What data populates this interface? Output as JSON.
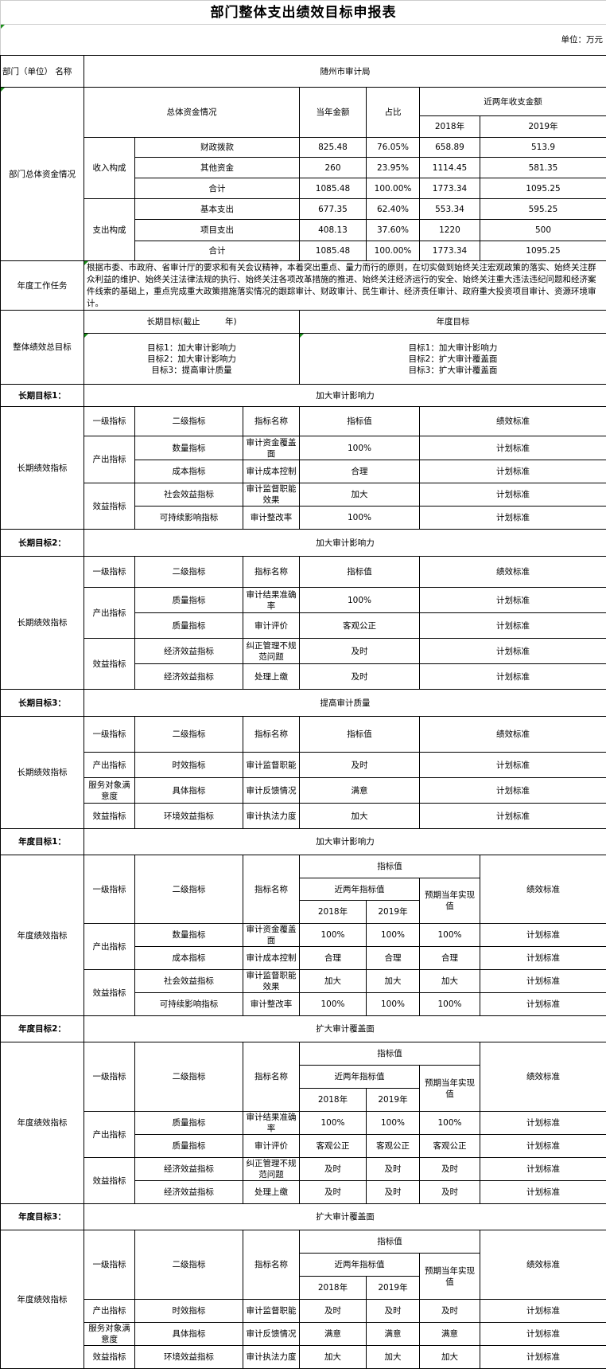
{
  "title": "部门整体支出绩效目标申报表",
  "unit": "单位：万元",
  "department": {
    "label": "部门（单位） 名称",
    "value": "随州市审计局"
  },
  "overall_funds": {
    "label": "部门总体资金情况",
    "headers": {
      "category": "总体资金情况",
      "current": "当年金额",
      "ratio": "占比",
      "recent": "近两年收支金额",
      "y2018": "2018年",
      "y2019": "2019年"
    },
    "groups": [
      {
        "name": "收入构成",
        "rows": [
          {
            "item": "财政拨款",
            "current": "825.48",
            "ratio": "76.05%",
            "y2018": "658.89",
            "y2019": "513.9"
          },
          {
            "item": "其他资金",
            "current": "260",
            "ratio": "23.95%",
            "y2018": "1114.45",
            "y2019": "581.35"
          },
          {
            "item": "合计",
            "current": "1085.48",
            "ratio": "100.00%",
            "y2018": "1773.34",
            "y2019": "1095.25"
          }
        ]
      },
      {
        "name": "支出构成",
        "rows": [
          {
            "item": "基本支出",
            "current": "677.35",
            "ratio": "62.40%",
            "y2018": "553.34",
            "y2019": "595.25"
          },
          {
            "item": "项目支出",
            "current": "408.13",
            "ratio": "37.60%",
            "y2018": "1220",
            "y2019": "500"
          },
          {
            "item": "合计",
            "current": "1085.48",
            "ratio": "100.00%",
            "y2018": "1773.34",
            "y2019": "1095.25"
          }
        ]
      }
    ]
  },
  "annual_task": {
    "label": "年度工作任务",
    "text": "根据市委、市政府、省审计厅的要求和有关会议精神，本着突出重点、量力而行的原则，在切实做到始终关注宏观政策的落实、始终关注群众利益的维护、始终关注法律法规的执行、始终关注各项改革措施的推进、始终关注经济运行的安全、始终关注重大违法违纪问题和经济案件线索的基础上，重点完成重大政策措施落实情况的跟踪审计、财政审计、民生审计、经济责任审计、政府重大投资项目审计、资源环境审计。"
  },
  "overall_goals": {
    "label": "整体绩效总目标",
    "long_term_header": "长期目标(截止　　　年)",
    "annual_header": "年度目标",
    "long_term": [
      "目标1：加大审计影响力",
      "目标2：加大审计影响力",
      "目标3：提高审计质量"
    ],
    "annual": [
      "目标1：加大审计影响力",
      "目标2：扩大审计覆盖面",
      "目标3：扩大审计覆盖面"
    ]
  },
  "indicator_headers": {
    "level1": "一级指标",
    "level2": "二级指标",
    "name": "指标名称",
    "value": "指标值",
    "standard": "绩效标准",
    "recent": "近两年指标值",
    "expected": "预期当年实现值",
    "y2018": "2018年",
    "y2019": "2019年"
  },
  "long_term_sections": [
    {
      "label": "长期目标1：",
      "goal": "加大审计影响力",
      "group_label": "长期绩效指标",
      "rows": [
        {
          "level1": "产出指标",
          "level2": "数量指标",
          "name": "审计资金覆盖面",
          "value": "100%",
          "standard": "计划标准"
        },
        {
          "level1": "产出指标",
          "level2": "成本指标",
          "name": "审计成本控制",
          "value": "合理",
          "standard": "计划标准"
        },
        {
          "level1": "效益指标",
          "level2": "社会效益指标",
          "name": "审计监督职能效果",
          "value": "加大",
          "standard": "计划标准"
        },
        {
          "level1": "效益指标",
          "level2": "可持续影响指标",
          "name": "审计整改率",
          "value": "100%",
          "standard": "计划标准"
        }
      ]
    },
    {
      "label": "长期目标2：",
      "goal": "加大审计影响力",
      "group_label": "长期绩效指标",
      "rows": [
        {
          "level1": "产出指标",
          "level2": "质量指标",
          "name": "审计结果准确率",
          "value": "100%",
          "standard": "计划标准"
        },
        {
          "level1": "产出指标",
          "level2": "质量指标",
          "name": "审计评价",
          "value": "客观公正",
          "standard": "计划标准"
        },
        {
          "level1": "效益指标",
          "level2": "经济效益指标",
          "name": "纠正管理不规范问题",
          "value": "及时",
          "standard": "计划标准"
        },
        {
          "level1": "效益指标",
          "level2": "经济效益指标",
          "name": "处理上缴",
          "value": "及时",
          "standard": "计划标准"
        }
      ]
    },
    {
      "label": "长期目标3：",
      "goal": "提高审计质量",
      "group_label": "长期绩效指标",
      "rows": [
        {
          "level1": "产出指标",
          "level2": "时效指标",
          "name": "审计监督职能",
          "value": "及时",
          "standard": "计划标准"
        },
        {
          "level1": "服务对象满意度",
          "level2": "具体指标",
          "name": "审计反馈情况",
          "value": "满意",
          "standard": "计划标准"
        },
        {
          "level1": "效益指标",
          "level2": "环境效益指标",
          "name": "审计执法力度",
          "value": "加大",
          "standard": "计划标准"
        }
      ]
    }
  ],
  "annual_sections": [
    {
      "label": "年度目标1：",
      "goal": "加大审计影响力",
      "group_label": "年度绩效指标",
      "rows": [
        {
          "level1": "产出指标",
          "level2": "数量指标",
          "name": "审计资金覆盖面",
          "y2018": "100%",
          "y2019": "100%",
          "expected": "100%",
          "standard": "计划标准"
        },
        {
          "level1": "产出指标",
          "level2": "成本指标",
          "name": "审计成本控制",
          "y2018": "合理",
          "y2019": "合理",
          "expected": "合理",
          "standard": "计划标准"
        },
        {
          "level1": "效益指标",
          "level2": "社会效益指标",
          "name": "审计监督职能效果",
          "y2018": "加大",
          "y2019": "加大",
          "expected": "加大",
          "standard": "计划标准"
        },
        {
          "level1": "效益指标",
          "level2": "可持续影响指标",
          "name": "审计整改率",
          "y2018": "100%",
          "y2019": "100%",
          "expected": "100%",
          "standard": "计划标准"
        }
      ]
    },
    {
      "label": "年度目标2：",
      "goal": "扩大审计覆盖面",
      "group_label": "年度绩效指标",
      "rows": [
        {
          "level1": "产出指标",
          "level2": "质量指标",
          "name": "审计结果准确率",
          "y2018": "100%",
          "y2019": "100%",
          "expected": "100%",
          "standard": "计划标准"
        },
        {
          "level1": "产出指标",
          "level2": "质量指标",
          "name": "审计评价",
          "y2018": "客观公正",
          "y2019": "客观公正",
          "expected": "客观公正",
          "standard": "计划标准"
        },
        {
          "level1": "效益指标",
          "level2": "经济效益指标",
          "name": "纠正管理不规范问题",
          "y2018": "及时",
          "y2019": "及时",
          "expected": "及时",
          "standard": "计划标准"
        },
        {
          "level1": "效益指标",
          "level2": "经济效益指标",
          "name": "处理上缴",
          "y2018": "及时",
          "y2019": "及时",
          "expected": "及时",
          "standard": "计划标准"
        }
      ]
    },
    {
      "label": "年度目标3：",
      "goal": "扩大审计覆盖面",
      "group_label": "年度绩效指标",
      "rows": [
        {
          "level1": "产出指标",
          "level2": "时效指标",
          "name": "审计监督职能",
          "y2018": "及时",
          "y2019": "及时",
          "expected": "及时",
          "standard": "计划标准"
        },
        {
          "level1": "服务对象满意度",
          "level2": "具体指标",
          "name": "审计反馈情况",
          "y2018": "满意",
          "y2019": "满意",
          "expected": "满意",
          "standard": "计划标准"
        },
        {
          "level1": "效益指标",
          "level2": "环境效益指标",
          "name": "审计执法力度",
          "y2018": "加大",
          "y2019": "加大",
          "expected": "加大",
          "standard": "计划标准"
        }
      ]
    }
  ]
}
